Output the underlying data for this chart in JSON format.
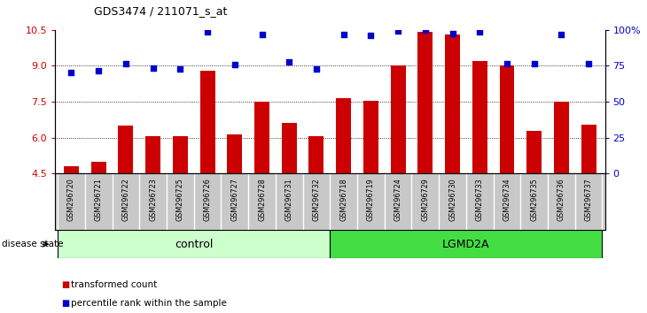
{
  "title": "GDS3474 / 211071_s_at",
  "samples": [
    "GSM296720",
    "GSM296721",
    "GSM296722",
    "GSM296723",
    "GSM296725",
    "GSM296726",
    "GSM296727",
    "GSM296728",
    "GSM296731",
    "GSM296732",
    "GSM296718",
    "GSM296719",
    "GSM296724",
    "GSM296729",
    "GSM296730",
    "GSM296733",
    "GSM296734",
    "GSM296735",
    "GSM296736",
    "GSM296737"
  ],
  "bar_values": [
    4.8,
    5.0,
    6.5,
    6.05,
    6.05,
    8.8,
    6.15,
    7.5,
    6.6,
    6.05,
    7.65,
    7.55,
    9.0,
    10.4,
    10.3,
    9.2,
    9.0,
    6.3,
    7.5,
    6.55
  ],
  "dot_values": [
    8.7,
    8.8,
    9.1,
    8.9,
    8.85,
    10.4,
    9.05,
    10.3,
    9.15,
    8.85,
    10.3,
    10.28,
    10.45,
    10.5,
    10.35,
    10.4,
    9.1,
    9.1,
    10.3,
    9.1
  ],
  "bar_color": "#cc0000",
  "dot_color": "#0000cc",
  "ylim_left": [
    4.5,
    10.5
  ],
  "ylim_right": [
    0,
    100
  ],
  "yticks_left": [
    4.5,
    6.0,
    7.5,
    9.0,
    10.5
  ],
  "yticks_right": [
    0,
    25,
    50,
    75,
    100
  ],
  "ytick_labels_right": [
    "0",
    "25",
    "50",
    "75",
    "100%"
  ],
  "grid_values": [
    6.0,
    7.5,
    9.0
  ],
  "control_samples": 10,
  "lgmd2a_samples": 10,
  "control_label": "control",
  "lgmd2a_label": "LGMD2A",
  "disease_state_label": "disease state",
  "legend_bar_label": "transformed count",
  "legend_dot_label": "percentile rank within the sample",
  "bg_color_plot": "#ffffff",
  "bg_color_xtick": "#c8c8c8",
  "control_bg": "#ccffcc",
  "lgmd2a_bg": "#44dd44"
}
